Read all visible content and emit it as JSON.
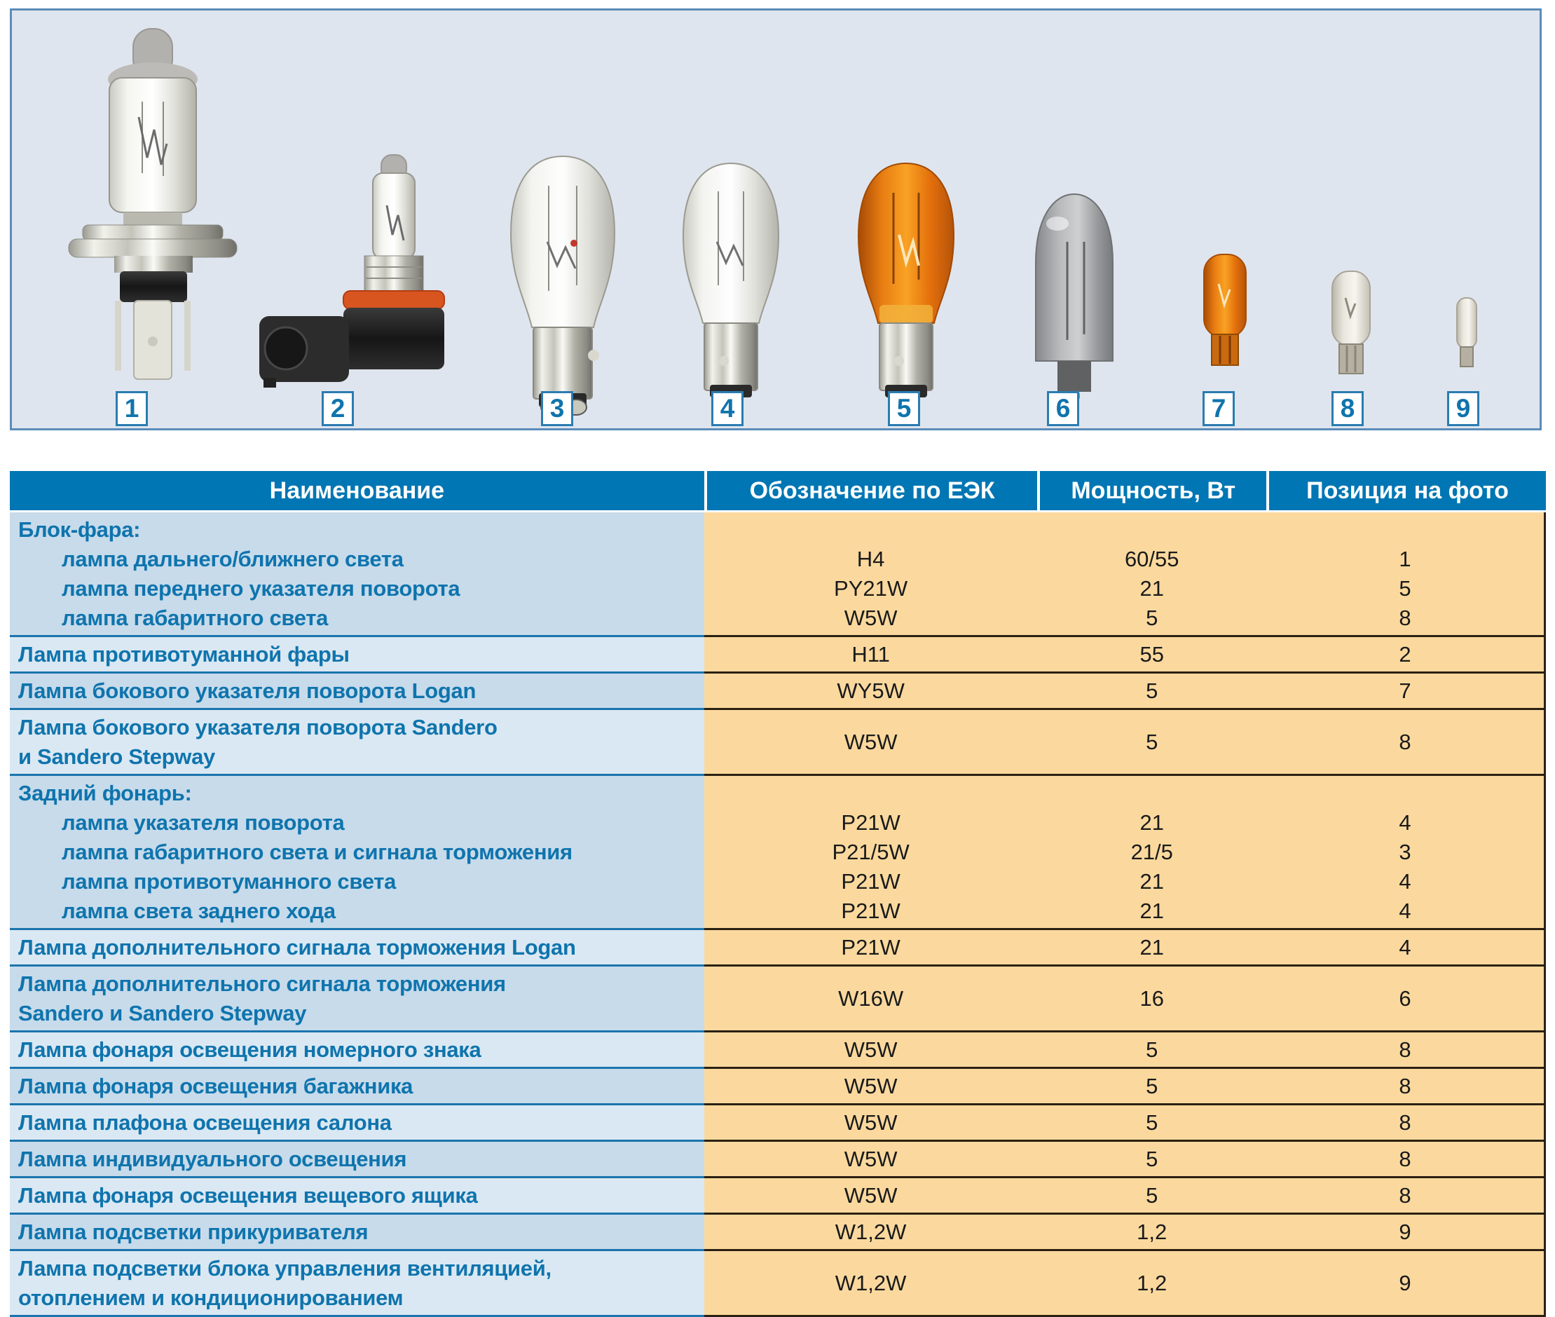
{
  "photo": {
    "labels": [
      "1",
      "2",
      "3",
      "4",
      "5",
      "6",
      "7",
      "8",
      "9"
    ],
    "bulb_icons": [
      "h4-halogen-headlight-bulb-icon",
      "h11-fog-lamp-bulb-icon",
      "p21-5w-dual-filament-bulb-icon",
      "p21w-single-filament-bulb-icon",
      "py21w-amber-bulb-icon",
      "w16w-gray-wedge-bulb-icon",
      "wy5w-amber-wedge-bulb-icon",
      "w5w-clear-wedge-bulb-icon",
      "w1-2w-mini-wedge-bulb-icon"
    ]
  },
  "table": {
    "headers": [
      "Наименование",
      "Обозначение по ЕЭК",
      "Мощность, Вт",
      "Позиция на фото"
    ],
    "rows": [
      {
        "type": "group",
        "head": "Блок-фара:",
        "subs": [
          {
            "name": "лампа дальнего/ближнего света",
            "ecc": "H4",
            "power": "60/55",
            "pos": "1"
          },
          {
            "name": "лампа переднего указателя поворота",
            "ecc": "PY21W",
            "power": "21",
            "pos": "5"
          },
          {
            "name": "лампа габаритного света",
            "ecc": "W5W",
            "power": "5",
            "pos": "8"
          }
        ]
      },
      {
        "type": "simple",
        "name": "Лампа противотуманной фары",
        "ecc": "H11",
        "power": "55",
        "pos": "2"
      },
      {
        "type": "simple",
        "name": "Лампа бокового указателя поворота Logan",
        "ecc": "WY5W",
        "power": "5",
        "pos": "7"
      },
      {
        "type": "simple",
        "name": "Лампа бокового указателя поворота Sandero",
        "name2": "и Sandero Stepway",
        "ecc": "W5W",
        "power": "5",
        "pos": "8"
      },
      {
        "type": "group",
        "head": "Задний фонарь:",
        "subs": [
          {
            "name": "лампа указателя поворота",
            "ecc": "P21W",
            "power": "21",
            "pos": "4"
          },
          {
            "name": "лампа габаритного света и сигнала торможения",
            "ecc": "P21/5W",
            "power": "21/5",
            "pos": "3"
          },
          {
            "name": "лампа противотуманного света",
            "ecc": "P21W",
            "power": "21",
            "pos": "4"
          },
          {
            "name": "лампа света заднего хода",
            "ecc": "P21W",
            "power": "21",
            "pos": "4"
          }
        ]
      },
      {
        "type": "simple",
        "name": "Лампа дополнительного сигнала торможения Logan",
        "ecc": "P21W",
        "power": "21",
        "pos": "4"
      },
      {
        "type": "simple",
        "name": "Лампа дополнительного сигнала торможения",
        "name2": "Sandero и Sandero Stepway",
        "ecc": "W16W",
        "power": "16",
        "pos": "6"
      },
      {
        "type": "simple",
        "name": "Лампа фонаря освещения номерного знака",
        "ecc": "W5W",
        "power": "5",
        "pos": "8"
      },
      {
        "type": "simple",
        "name": "Лампа фонаря освещения багажника",
        "ecc": "W5W",
        "power": "5",
        "pos": "8"
      },
      {
        "type": "simple",
        "name": "Лампа плафона освещения салона",
        "ecc": "W5W",
        "power": "5",
        "pos": "8"
      },
      {
        "type": "simple",
        "name": "Лампа индивидуального освещения",
        "ecc": "W5W",
        "power": "5",
        "pos": "8"
      },
      {
        "type": "simple",
        "name": "Лампа фонаря освещения вещевого ящика",
        "ecc": "W5W",
        "power": "5",
        "pos": "8"
      },
      {
        "type": "simple",
        "name": "Лампа подсветки прикуривателя",
        "ecc": "W1,2W",
        "power": "1,2",
        "pos": "9"
      },
      {
        "type": "simple",
        "name": "Лампа подсветки блока управления вентиляцией,",
        "name2": "отоплением и кондиционированием",
        "ecc": "W1,2W",
        "power": "1,2",
        "pos": "9"
      }
    ]
  },
  "colors": {
    "header_blue": "#0076b4",
    "name_text_blue": "#0f74ad",
    "row_dark_blue": "#c7dbeb",
    "row_light_blue": "#dae8f3",
    "data_orange": "#fbd99e",
    "panel_background": "#dfe5ee",
    "panel_border": "#5b8cb8",
    "amber_bulb": "#e8820f",
    "separator_blue": "#1b74ad",
    "separator_dark": "#2b2012"
  }
}
